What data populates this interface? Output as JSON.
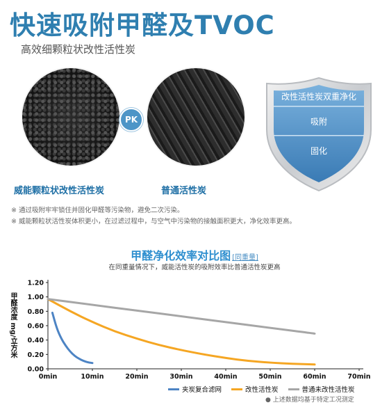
{
  "header": {
    "title": "快速吸附甲醛及TVOC",
    "subtitle": "高效细颗粒状改性活性炭"
  },
  "comparison": {
    "pk_label": "PK",
    "left_label": "威能颗粒状改性活性炭",
    "right_label": "普通活性炭"
  },
  "shield": {
    "title": "改性活性炭双重净化",
    "item1": "吸附",
    "item2": "固化"
  },
  "notes": [
    "※ 通过吸附牢牢锁住并固化甲醛等污染物，避免二次污染。",
    "※ 威能颗粒状活性炭体积更小，在过滤过程中，与空气中污染物的接触面积更大，净化效率更高。"
  ],
  "colors": {
    "brand_blue": "#2f7fb0",
    "series_blue": "#4d84c4",
    "series_orange": "#f5a623",
    "series_gray": "#a6a6a6"
  },
  "chart_data": {
    "type": "line",
    "title": "甲醛净化效率对比图",
    "title_tag": "[同重量]",
    "subtitle": "在同重量情况下，威能活性炭的吸附效率比普通活性炭更高",
    "ylabel": "甲醛浓度 mg/立方米",
    "xlabel": "",
    "x_ticks": [
      "0min",
      "10min",
      "20min",
      "30min",
      "40min",
      "50min",
      "60min",
      "70min"
    ],
    "y_ticks": [
      "0.00",
      "0.20",
      "0.40",
      "0.60",
      "0.80",
      "1.00",
      "1.20"
    ],
    "xlim": [
      0,
      70
    ],
    "ylim": [
      0,
      1.2
    ],
    "grid": false,
    "legend_position": "bottom-right",
    "series": [
      {
        "name": "夹炭复合滤网",
        "color": "#4d84c4",
        "x": [
          1,
          2,
          3,
          4,
          5,
          6,
          7,
          8,
          9,
          10
        ],
        "y": [
          0.78,
          0.56,
          0.42,
          0.32,
          0.24,
          0.18,
          0.14,
          0.11,
          0.09,
          0.08
        ]
      },
      {
        "name": "改性活性炭",
        "color": "#f5a623",
        "x": [
          0,
          5,
          10,
          15,
          20,
          25,
          30,
          35,
          40,
          45,
          50,
          55,
          60
        ],
        "y": [
          0.97,
          0.8,
          0.65,
          0.52,
          0.42,
          0.33,
          0.26,
          0.2,
          0.15,
          0.11,
          0.085,
          0.07,
          0.06
        ]
      },
      {
        "name": "普通未改性活性炭",
        "color": "#a6a6a6",
        "x": [
          0,
          10,
          20,
          30,
          40,
          50,
          60
        ],
        "y": [
          0.97,
          0.89,
          0.81,
          0.73,
          0.65,
          0.57,
          0.49
        ]
      }
    ]
  },
  "footnote": "● 上述数据均基于特定工况测定"
}
